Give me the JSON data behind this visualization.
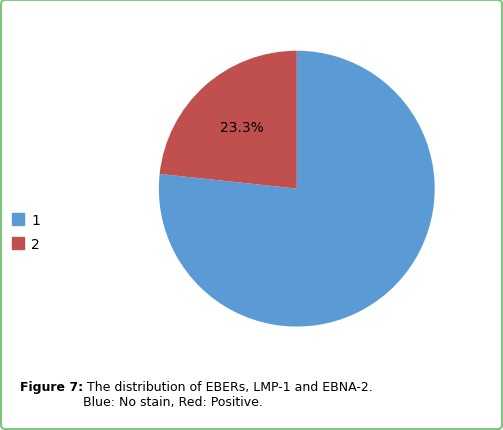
{
  "slices": [
    76.7,
    23.3
  ],
  "colors": [
    "#5B9BD5",
    "#C0504D"
  ],
  "startangle": 90,
  "legend_labels": [
    "1",
    "2"
  ],
  "legend_colors": [
    "#5B9BD5",
    "#C0504D"
  ],
  "caption_bold": "Figure 7:",
  "caption_normal": " The distribution of EBERs, LMP-1 and EBNA-2.\nBlue: No stain, Red: Positive.",
  "background_color": "#ffffff",
  "border_color": "#7dc47d",
  "figsize": [
    5.03,
    4.31
  ],
  "dpi": 100
}
